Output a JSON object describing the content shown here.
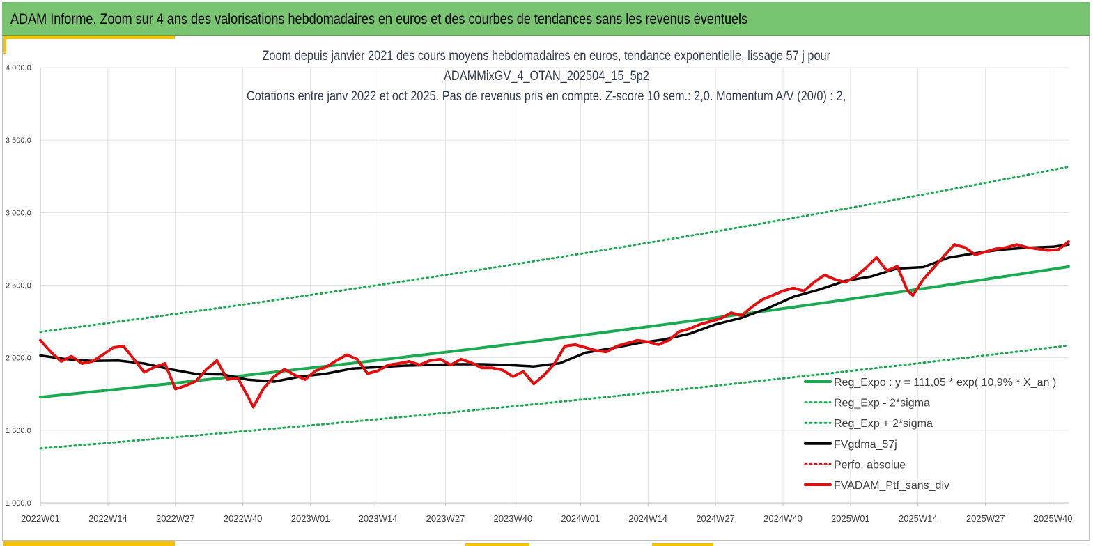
{
  "header": {
    "title": "ADAM Informe. Zoom sur 4 ans des valorisations hebdomadaires en euros et des courbes de tendances sans les revenus éventuels"
  },
  "chart_data": {
    "type": "line",
    "title_lines": [
      "Zoom depuis janvier 2021 des cours moyens hebdomadaires  en euros, tendance exponentielle, lissage 57 j pour",
      "ADAMMixGV_4_OTAN_202504_15_5p2",
      "Cotations  entre janv 2022 et oct 2025. Pas de revenus pris en compte. Z-score 10 sem.: 2,0. Momentum A/V (20/0) : 2,"
    ],
    "y_ticks": [
      "1 000,0",
      "1 500,0",
      "2 000,0",
      "2 500,0",
      "3 000,0",
      "3 500,0",
      "4 000,0"
    ],
    "y_tick_values": [
      1000,
      1500,
      2000,
      2500,
      3000,
      3500,
      4000
    ],
    "ylim": [
      1000,
      4000
    ],
    "x_ticks": [
      "2022W01",
      "2022W14",
      "2022W27",
      "2022W40",
      "2023W01",
      "2023W14",
      "2023W27",
      "2023W40",
      "2024W01",
      "2024W14",
      "2024W27",
      "2024W40",
      "2025W01",
      "2025W14",
      "2025W27",
      "2025W40"
    ],
    "x_tick_index": [
      0,
      13,
      26,
      39,
      52,
      65,
      78,
      91,
      104,
      117,
      130,
      143,
      156,
      169,
      182,
      195
    ],
    "n_weeks": 199,
    "grid": true,
    "legend_position": "bottom-right",
    "series": [
      {
        "name": "Reg_Expo : y = 111,05 * exp( 10,9% *  X_an )",
        "style": "solid",
        "color": "#1aaa50",
        "width": 4,
        "x": [
          0,
          198
        ],
        "values": [
          1728,
          2628
        ],
        "curve": "exp"
      },
      {
        "name": "Reg_Exp - 2*sigma",
        "style": "dotted",
        "color": "#1aaa50",
        "width": 3,
        "x": [
          0,
          198
        ],
        "values": [
          1375,
          2085
        ],
        "curve": "exp"
      },
      {
        "name": "Reg_Exp + 2*sigma",
        "style": "dotted",
        "color": "#1aaa50",
        "width": 3,
        "x": [
          0,
          198
        ],
        "values": [
          2178,
          3316
        ],
        "curve": "exp"
      },
      {
        "name": "FVgdma_57j",
        "style": "solid",
        "color": "#000000",
        "width": 3.5,
        "x": [
          0,
          5,
          10,
          15,
          20,
          25,
          30,
          35,
          40,
          45,
          50,
          55,
          60,
          65,
          70,
          75,
          80,
          85,
          90,
          95,
          100,
          105,
          110,
          115,
          120,
          125,
          130,
          135,
          140,
          145,
          150,
          155,
          160,
          165,
          170,
          175,
          180,
          185,
          190,
          195,
          198
        ],
        "values": [
          2015,
          1990,
          1978,
          1980,
          1960,
          1920,
          1888,
          1885,
          1848,
          1835,
          1870,
          1890,
          1925,
          1935,
          1945,
          1950,
          1955,
          1955,
          1950,
          1940,
          1962,
          2035,
          2065,
          2100,
          2125,
          2165,
          2230,
          2275,
          2340,
          2420,
          2470,
          2530,
          2560,
          2615,
          2625,
          2690,
          2720,
          2745,
          2758,
          2765,
          2780
        ]
      },
      {
        "name": "Perfo. absolue",
        "style": "dotted",
        "color": "#e41010",
        "width": 3,
        "x": [],
        "values": []
      },
      {
        "name": "FVADAM_Ptf_sans_div",
        "style": "solid",
        "color": "#e41010",
        "width": 4,
        "x": [
          0,
          2,
          4,
          6,
          8,
          10,
          12,
          14,
          16,
          18,
          20,
          22,
          24,
          26,
          28,
          30,
          32,
          34,
          36,
          38,
          40,
          41,
          43,
          45,
          47,
          49,
          51,
          53,
          55,
          57,
          59,
          61,
          63,
          65,
          67,
          69,
          71,
          73,
          75,
          77,
          79,
          81,
          83,
          85,
          87,
          89,
          91,
          93,
          95,
          97,
          99,
          101,
          103,
          105,
          107,
          109,
          111,
          113,
          115,
          117,
          119,
          121,
          123,
          125,
          127,
          129,
          131,
          133,
          135,
          137,
          139,
          141,
          143,
          145,
          147,
          149,
          151,
          153,
          155,
          157,
          159,
          161,
          163,
          165,
          167,
          168,
          170,
          172,
          174,
          176,
          178,
          180,
          182,
          184,
          186,
          188,
          190,
          192,
          194,
          196,
          198
        ],
        "values": [
          2120,
          2040,
          1975,
          2010,
          1960,
          1975,
          2020,
          2070,
          2080,
          1990,
          1900,
          1935,
          1960,
          1785,
          1808,
          1840,
          1920,
          1980,
          1850,
          1860,
          1730,
          1660,
          1790,
          1870,
          1920,
          1880,
          1850,
          1910,
          1935,
          1980,
          2020,
          1990,
          1890,
          1910,
          1950,
          1960,
          1975,
          1950,
          1980,
          1990,
          1950,
          1990,
          1965,
          1930,
          1930,
          1915,
          1870,
          1905,
          1820,
          1880,
          1960,
          2080,
          2090,
          2070,
          2050,
          2040,
          2080,
          2100,
          2120,
          2110,
          2090,
          2120,
          2180,
          2200,
          2230,
          2250,
          2270,
          2310,
          2290,
          2350,
          2400,
          2430,
          2460,
          2480,
          2460,
          2520,
          2570,
          2540,
          2520,
          2560,
          2620,
          2690,
          2600,
          2630,
          2460,
          2430,
          2540,
          2620,
          2700,
          2780,
          2760,
          2710,
          2730,
          2750,
          2760,
          2780,
          2760,
          2750,
          2740,
          2745,
          2800
        ]
      }
    ]
  }
}
